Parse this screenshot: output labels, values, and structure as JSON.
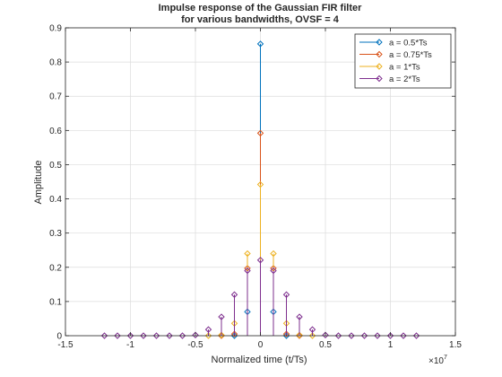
{
  "chart_data": {
    "type": "stem",
    "title": [
      "Impulse response of the Gaussian FIR filter",
      "for various bandwidths, OVSF = 4"
    ],
    "xlabel": "Normalized time (t/Ts)",
    "ylabel": "Amplitude",
    "x_exponent": "×10",
    "x_exponent_power": "7",
    "xlim": [
      -1.5,
      1.5
    ],
    "ylim": [
      0,
      0.9
    ],
    "xticks": [
      -1.5,
      -1,
      -0.5,
      0,
      0.5,
      1,
      1.5
    ],
    "xtick_labels": [
      "-1.5",
      "-1",
      "-0.5",
      "0",
      "0.5",
      "1",
      "1.5"
    ],
    "yticks": [
      0,
      0.1,
      0.2,
      0.3,
      0.4,
      0.5,
      0.6,
      0.7,
      0.8,
      0.9
    ],
    "ytick_labels": [
      "0",
      "0.1",
      "0.2",
      "0.3",
      "0.4",
      "0.5",
      "0.6",
      "0.7",
      "0.8",
      "0.9"
    ],
    "grid": true,
    "legend_position": "top-right",
    "series": [
      {
        "name": "a = 0.5*Ts",
        "color": "#0072bd",
        "x": [
          -0.2,
          -0.1,
          0,
          0.1,
          0.2
        ],
        "values": [
          0.0,
          0.07,
          0.853,
          0.07,
          0.0
        ]
      },
      {
        "name": "a = 0.75*Ts",
        "color": "#d95319",
        "x": [
          -0.3,
          -0.2,
          -0.1,
          0,
          0.1,
          0.2,
          0.3
        ],
        "values": [
          0.0,
          0.005,
          0.197,
          0.592,
          0.197,
          0.005,
          0.0
        ]
      },
      {
        "name": "a = 1*Ts",
        "color": "#edb120",
        "x": [
          -0.4,
          -0.3,
          -0.2,
          -0.1,
          0,
          0.1,
          0.2,
          0.3,
          0.4
        ],
        "values": [
          0.0,
          0.002,
          0.036,
          0.24,
          0.442,
          0.24,
          0.036,
          0.002,
          0.0
        ],
        "__note": "omit"
      },
      {
        "name": "a = 2*Ts",
        "color": "#7e2f8e",
        "x": [
          -1.2,
          -1.1,
          -1.0,
          -0.9,
          -0.8,
          -0.7,
          -0.6,
          -0.5,
          -0.4,
          -0.3,
          -0.2,
          -0.1,
          0,
          0.1,
          0.2,
          0.3,
          0.4,
          0.5,
          0.6,
          0.7,
          0.8,
          0.9,
          1.0,
          1.1,
          1.2
        ],
        "values": [
          0.0,
          0.0,
          0.0,
          0.0,
          0.0,
          0.0,
          0.0,
          0.002,
          0.018,
          0.055,
          0.12,
          0.19,
          0.221,
          0.19,
          0.12,
          0.055,
          0.018,
          0.002,
          0.0,
          0.0,
          0.0,
          0.0,
          0.0,
          0.0,
          0.0
        ]
      }
    ]
  }
}
